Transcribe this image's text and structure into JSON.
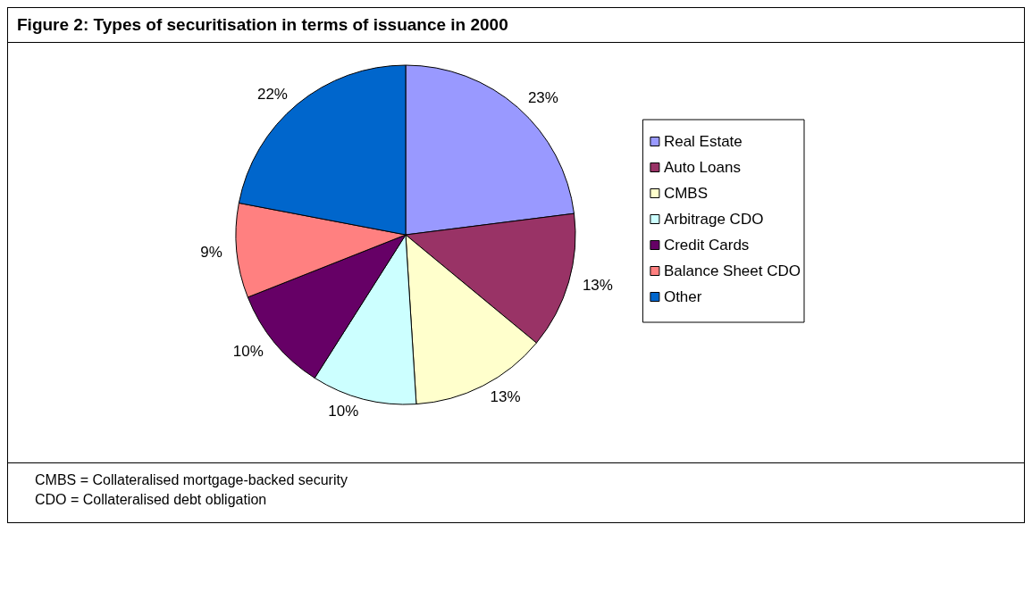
{
  "chart_data": {
    "type": "pie",
    "title": "Figure 2: Types of securitisation in terms of issuance in 2000",
    "categories": [
      "Real Estate",
      "Auto Loans",
      "CMBS",
      "Arbitrage CDO",
      "Credit Cards",
      "Balance Sheet CDO",
      "Other"
    ],
    "values": [
      23,
      13,
      13,
      10,
      10,
      9,
      22
    ],
    "value_labels": [
      "23%",
      "13%",
      "13%",
      "10%",
      "10%",
      "9%",
      "22%"
    ],
    "colors": [
      "#9999ff",
      "#993366",
      "#ffffcc",
      "#ccffff",
      "#660066",
      "#ff8080",
      "#0066cc"
    ],
    "legend": "right",
    "annotations": [
      "CMBS = Collateralised mortgage-backed security",
      "CDO = Collateralised debt obligation"
    ]
  }
}
